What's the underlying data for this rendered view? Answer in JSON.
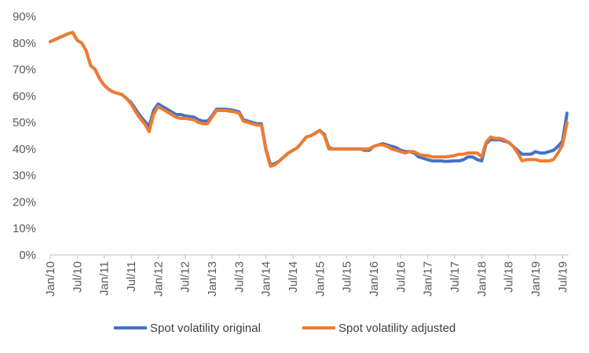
{
  "chart_data": {
    "type": "line",
    "title": "",
    "xlabel": "",
    "ylabel": "",
    "ylim": [
      0,
      90
    ],
    "y_unit": "%",
    "grid": false,
    "legend_placement": "bottom",
    "y_ticks": [
      "0%",
      "10%",
      "20%",
      "30%",
      "40%",
      "50%",
      "60%",
      "70%",
      "80%",
      "90%"
    ],
    "x_ticks": [
      "Jan/10",
      "Jul/10",
      "Jan/11",
      "Jul/11",
      "Jan/12",
      "Jul/12",
      "Jan/13",
      "Jul/13",
      "Jan/14",
      "Jul/14",
      "Jan/15",
      "Jul/15",
      "Jan/16",
      "Jul/16",
      "Jan/17",
      "Jul/17",
      "Jan/18",
      "Jul/18",
      "Jan/19",
      "Jul/19"
    ],
    "series": [
      {
        "name": "Spot volatility original",
        "color": "#4472C4",
        "points": [
          [
            "2010-01",
            80.5
          ],
          [
            "2010-03",
            82.0
          ],
          [
            "2010-05",
            83.5
          ],
          [
            "2010-06",
            84.0
          ],
          [
            "2010-07",
            81.0
          ],
          [
            "2010-08",
            80.0
          ],
          [
            "2010-09",
            77.0
          ],
          [
            "2010-10",
            71.5
          ],
          [
            "2010-11",
            70.0
          ],
          [
            "2010-12",
            66.5
          ],
          [
            "2011-01",
            64.0
          ],
          [
            "2011-02",
            62.5
          ],
          [
            "2011-03",
            61.5
          ],
          [
            "2011-04",
            61.0
          ],
          [
            "2011-05",
            60.5
          ],
          [
            "2011-06",
            59.0
          ],
          [
            "2011-07",
            57.5
          ],
          [
            "2011-08",
            55.0
          ],
          [
            "2011-09",
            52.5
          ],
          [
            "2011-10",
            50.5
          ],
          [
            "2011-11",
            48.5
          ],
          [
            "2011-12",
            54.5
          ],
          [
            "2012-01",
            57.0
          ],
          [
            "2012-02",
            56.0
          ],
          [
            "2012-03",
            55.0
          ],
          [
            "2012-04",
            54.0
          ],
          [
            "2012-05",
            53.0
          ],
          [
            "2012-06",
            53.0
          ],
          [
            "2012-07",
            52.5
          ],
          [
            "2012-09",
            52.0
          ],
          [
            "2012-10",
            51.0
          ],
          [
            "2012-11",
            50.5
          ],
          [
            "2012-12",
            50.5
          ],
          [
            "2013-01",
            52.5
          ],
          [
            "2013-02",
            55.0
          ],
          [
            "2013-03",
            55.0
          ],
          [
            "2013-04",
            55.0
          ],
          [
            "2013-06",
            54.5
          ],
          [
            "2013-07",
            54.0
          ],
          [
            "2013-08",
            51.0
          ],
          [
            "2013-09",
            50.5
          ],
          [
            "2013-10",
            50.0
          ],
          [
            "2013-11",
            49.5
          ],
          [
            "2013-12",
            49.5
          ],
          [
            "2014-01",
            40.0
          ],
          [
            "2014-02",
            34.0
          ],
          [
            "2014-03",
            34.5
          ],
          [
            "2014-04",
            35.5
          ],
          [
            "2014-05",
            37.0
          ],
          [
            "2014-06",
            38.5
          ],
          [
            "2014-07",
            39.5
          ],
          [
            "2014-08",
            40.5
          ],
          [
            "2014-09",
            42.5
          ],
          [
            "2014-10",
            44.5
          ],
          [
            "2014-11",
            45.0
          ],
          [
            "2014-12",
            46.0
          ],
          [
            "2015-01",
            47.0
          ],
          [
            "2015-02",
            45.5
          ],
          [
            "2015-03",
            40.5
          ],
          [
            "2015-04",
            40.0
          ],
          [
            "2015-06",
            40.0
          ],
          [
            "2015-08",
            40.0
          ],
          [
            "2015-10",
            40.0
          ],
          [
            "2015-11",
            39.5
          ],
          [
            "2015-12",
            39.5
          ],
          [
            "2016-01",
            41.0
          ],
          [
            "2016-02",
            41.5
          ],
          [
            "2016-03",
            42.0
          ],
          [
            "2016-04",
            41.5
          ],
          [
            "2016-05",
            41.0
          ],
          [
            "2016-06",
            40.5
          ],
          [
            "2016-07",
            39.5
          ],
          [
            "2016-08",
            39.0
          ],
          [
            "2016-09",
            39.0
          ],
          [
            "2016-10",
            38.5
          ],
          [
            "2016-11",
            37.0
          ],
          [
            "2016-12",
            36.5
          ],
          [
            "2017-01",
            36.0
          ],
          [
            "2017-02",
            35.5
          ],
          [
            "2017-04",
            35.5
          ],
          [
            "2017-05",
            35.3
          ],
          [
            "2017-07",
            35.5
          ],
          [
            "2017-08",
            35.5
          ],
          [
            "2017-09",
            36.0
          ],
          [
            "2017-10",
            37.0
          ],
          [
            "2017-11",
            37.0
          ],
          [
            "2017-12",
            36.0
          ],
          [
            "2018-01",
            35.5
          ],
          [
            "2018-02",
            42.0
          ],
          [
            "2018-03",
            43.5
          ],
          [
            "2018-04",
            43.5
          ],
          [
            "2018-05",
            43.5
          ],
          [
            "2018-06",
            43.0
          ],
          [
            "2018-07",
            42.5
          ],
          [
            "2018-08",
            41.0
          ],
          [
            "2018-09",
            39.5
          ],
          [
            "2018-10",
            38.0
          ],
          [
            "2018-11",
            38.0
          ],
          [
            "2018-12",
            38.0
          ],
          [
            "2019-01",
            39.0
          ],
          [
            "2019-02",
            38.5
          ],
          [
            "2019-03",
            38.5
          ],
          [
            "2019-04",
            39.0
          ],
          [
            "2019-05",
            39.5
          ],
          [
            "2019-06",
            41.0
          ],
          [
            "2019-07",
            43.0
          ],
          [
            "2019-08",
            53.5
          ]
        ]
      },
      {
        "name": "Spot volatility adjusted",
        "color": "#ED7D31",
        "points": [
          [
            "2010-01",
            80.5
          ],
          [
            "2010-03",
            82.0
          ],
          [
            "2010-05",
            83.5
          ],
          [
            "2010-06",
            84.0
          ],
          [
            "2010-07",
            81.0
          ],
          [
            "2010-08",
            80.0
          ],
          [
            "2010-09",
            77.0
          ],
          [
            "2010-10",
            71.5
          ],
          [
            "2010-11",
            70.0
          ],
          [
            "2010-12",
            66.5
          ],
          [
            "2011-01",
            64.0
          ],
          [
            "2011-02",
            62.5
          ],
          [
            "2011-03",
            61.5
          ],
          [
            "2011-04",
            61.0
          ],
          [
            "2011-05",
            60.5
          ],
          [
            "2011-06",
            59.0
          ],
          [
            "2011-07",
            57.0
          ],
          [
            "2011-08",
            54.0
          ],
          [
            "2011-09",
            51.5
          ],
          [
            "2011-10",
            49.5
          ],
          [
            "2011-11",
            46.5
          ],
          [
            "2011-12",
            53.0
          ],
          [
            "2012-01",
            56.0
          ],
          [
            "2012-02",
            55.0
          ],
          [
            "2012-03",
            54.0
          ],
          [
            "2012-04",
            53.0
          ],
          [
            "2012-05",
            52.0
          ],
          [
            "2012-06",
            51.5
          ],
          [
            "2012-07",
            51.5
          ],
          [
            "2012-09",
            51.0
          ],
          [
            "2012-10",
            50.0
          ],
          [
            "2012-11",
            49.5
          ],
          [
            "2012-12",
            49.5
          ],
          [
            "2013-01",
            52.0
          ],
          [
            "2013-02",
            54.5
          ],
          [
            "2013-03",
            54.5
          ],
          [
            "2013-04",
            54.5
          ],
          [
            "2013-06",
            54.0
          ],
          [
            "2013-07",
            53.5
          ],
          [
            "2013-08",
            50.5
          ],
          [
            "2013-09",
            50.0
          ],
          [
            "2013-10",
            49.5
          ],
          [
            "2013-11",
            49.0
          ],
          [
            "2013-12",
            49.0
          ],
          [
            "2014-01",
            39.5
          ],
          [
            "2014-02",
            33.5
          ],
          [
            "2014-03",
            34.0
          ],
          [
            "2014-04",
            35.5
          ],
          [
            "2014-05",
            37.0
          ],
          [
            "2014-06",
            38.5
          ],
          [
            "2014-07",
            39.5
          ],
          [
            "2014-08",
            40.5
          ],
          [
            "2014-09",
            42.5
          ],
          [
            "2014-10",
            44.5
          ],
          [
            "2014-11",
            45.0
          ],
          [
            "2014-12",
            46.0
          ],
          [
            "2015-01",
            47.0
          ],
          [
            "2015-02",
            45.0
          ],
          [
            "2015-03",
            40.0
          ],
          [
            "2015-04",
            40.0
          ],
          [
            "2015-06",
            40.0
          ],
          [
            "2015-08",
            40.0
          ],
          [
            "2015-10",
            40.0
          ],
          [
            "2015-11",
            40.0
          ],
          [
            "2015-12",
            40.0
          ],
          [
            "2016-01",
            41.0
          ],
          [
            "2016-02",
            41.5
          ],
          [
            "2016-03",
            41.5
          ],
          [
            "2016-04",
            41.0
          ],
          [
            "2016-05",
            40.0
          ],
          [
            "2016-06",
            39.5
          ],
          [
            "2016-07",
            39.0
          ],
          [
            "2016-08",
            38.5
          ],
          [
            "2016-09",
            39.0
          ],
          [
            "2016-10",
            39.0
          ],
          [
            "2016-11",
            38.0
          ],
          [
            "2016-12",
            37.5
          ],
          [
            "2017-01",
            37.5
          ],
          [
            "2017-02",
            37.0
          ],
          [
            "2017-04",
            37.0
          ],
          [
            "2017-05",
            37.0
          ],
          [
            "2017-07",
            37.5
          ],
          [
            "2017-08",
            38.0
          ],
          [
            "2017-09",
            38.0
          ],
          [
            "2017-10",
            38.5
          ],
          [
            "2017-11",
            38.5
          ],
          [
            "2017-12",
            38.5
          ],
          [
            "2018-01",
            37.0
          ],
          [
            "2018-02",
            42.5
          ],
          [
            "2018-03",
            44.5
          ],
          [
            "2018-04",
            44.0
          ],
          [
            "2018-05",
            44.0
          ],
          [
            "2018-06",
            43.5
          ],
          [
            "2018-07",
            42.5
          ],
          [
            "2018-08",
            41.0
          ],
          [
            "2018-09",
            38.5
          ],
          [
            "2018-10",
            35.5
          ],
          [
            "2018-11",
            36.0
          ],
          [
            "2018-12",
            36.0
          ],
          [
            "2019-01",
            36.0
          ],
          [
            "2019-02",
            35.5
          ],
          [
            "2019-03",
            35.5
          ],
          [
            "2019-04",
            35.5
          ],
          [
            "2019-05",
            36.0
          ],
          [
            "2019-06",
            38.5
          ],
          [
            "2019-07",
            41.5
          ],
          [
            "2019-08",
            50.0
          ]
        ]
      }
    ]
  }
}
